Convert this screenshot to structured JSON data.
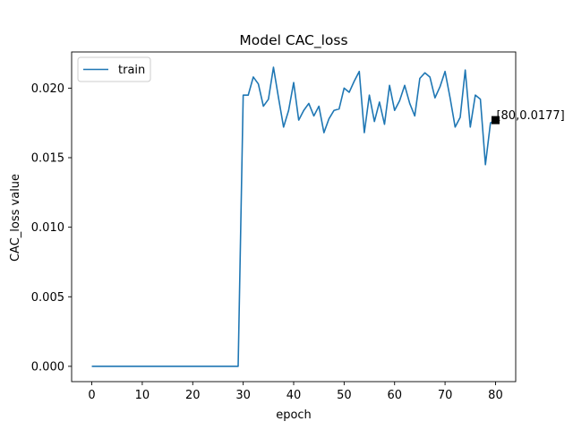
{
  "chart_data": {
    "type": "line",
    "title": "Model CAC_loss",
    "xlabel": "epoch",
    "ylabel": "CAC_loss value",
    "xlim": [
      -4,
      84
    ],
    "ylim": [
      -0.0011,
      0.0226
    ],
    "x_ticks": [
      0,
      10,
      20,
      30,
      40,
      50,
      60,
      70,
      80
    ],
    "y_ticks": [
      0.0,
      0.005,
      0.01,
      0.015,
      0.02
    ],
    "y_tick_labels": [
      "0.000",
      "0.005",
      "0.010",
      "0.015",
      "0.020"
    ],
    "grid": false,
    "legend": {
      "position": "upper-left",
      "entries": [
        "train"
      ]
    },
    "series": [
      {
        "name": "train",
        "color": "#1f77b4",
        "x": [
          0,
          1,
          2,
          3,
          4,
          5,
          6,
          7,
          8,
          9,
          10,
          11,
          12,
          13,
          14,
          15,
          16,
          17,
          18,
          19,
          20,
          21,
          22,
          23,
          24,
          25,
          26,
          27,
          28,
          29,
          30,
          31,
          32,
          33,
          34,
          35,
          36,
          37,
          38,
          39,
          40,
          41,
          42,
          43,
          44,
          45,
          46,
          47,
          48,
          49,
          50,
          51,
          52,
          53,
          54,
          55,
          56,
          57,
          58,
          59,
          60,
          61,
          62,
          63,
          64,
          65,
          66,
          67,
          68,
          69,
          70,
          71,
          72,
          73,
          74,
          75,
          76,
          77,
          78,
          79,
          80
        ],
        "y": [
          0,
          0,
          0,
          0,
          0,
          0,
          0,
          0,
          0,
          0,
          0,
          0,
          0,
          0,
          0,
          0,
          0,
          0,
          0,
          0,
          0,
          0,
          0,
          0,
          0,
          0,
          0,
          0,
          0,
          0,
          0.0195,
          0.0195,
          0.0208,
          0.0203,
          0.0187,
          0.0192,
          0.0215,
          0.0193,
          0.0172,
          0.0184,
          0.0204,
          0.0177,
          0.0184,
          0.0189,
          0.018,
          0.0187,
          0.0168,
          0.0178,
          0.0184,
          0.0185,
          0.02,
          0.0197,
          0.0205,
          0.0212,
          0.0168,
          0.0195,
          0.0176,
          0.019,
          0.0174,
          0.0202,
          0.0184,
          0.0191,
          0.0202,
          0.0189,
          0.018,
          0.0207,
          0.0211,
          0.0208,
          0.0193,
          0.0201,
          0.0212,
          0.0193,
          0.0172,
          0.0179,
          0.0213,
          0.0172,
          0.0195,
          0.0192,
          0.0145,
          0.0175,
          0.0177
        ]
      }
    ],
    "annotations": [
      {
        "x": 80,
        "y": 0.0177,
        "text": "[80,0.0177]",
        "marker": "square"
      }
    ]
  }
}
